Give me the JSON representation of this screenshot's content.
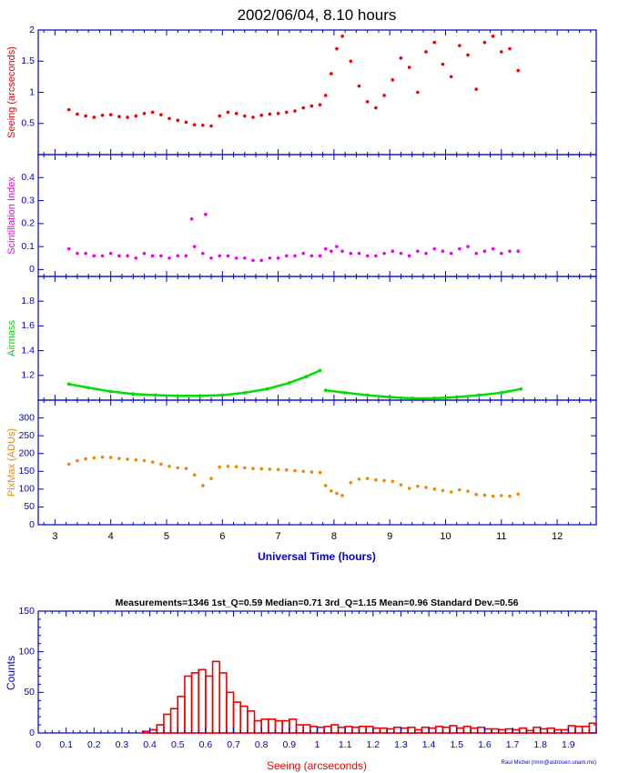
{
  "chart_data": [
    {
      "type": "scatter",
      "title": "2002/06/04, 8.10 hours",
      "xlabel": "Universal Time (hours)",
      "xlim": [
        2.7,
        12.7
      ],
      "x_ticks": [
        "3",
        "4",
        "5",
        "6",
        "7",
        "8",
        "9",
        "10",
        "11",
        "12"
      ],
      "panels": [
        {
          "name": "seeing",
          "ylabel": "Seeing (arcseconds)",
          "ylim": [
            0,
            2
          ],
          "y_ticks": [
            "0.5",
            "1",
            "1.5",
            "2"
          ],
          "color": "#ee0000",
          "x": [
            3.25,
            3.4,
            3.55,
            3.7,
            3.85,
            4.0,
            4.15,
            4.3,
            4.45,
            4.6,
            4.75,
            4.9,
            5.05,
            5.2,
            5.35,
            5.5,
            5.65,
            5.8,
            5.95,
            6.1,
            6.25,
            6.4,
            6.55,
            6.7,
            6.85,
            7.0,
            7.15,
            7.3,
            7.45,
            7.6,
            7.75,
            7.85,
            7.95,
            8.05,
            8.15,
            8.3,
            8.45,
            8.6,
            8.75,
            8.9,
            9.05,
            9.2,
            9.35,
            9.5,
            9.65,
            9.8,
            9.95,
            10.1,
            10.25,
            10.4,
            10.55,
            10.7,
            10.85,
            11.0,
            11.15,
            11.3
          ],
          "y": [
            0.72,
            0.65,
            0.62,
            0.6,
            0.63,
            0.64,
            0.61,
            0.6,
            0.62,
            0.66,
            0.68,
            0.64,
            0.58,
            0.55,
            0.52,
            0.48,
            0.47,
            0.46,
            0.62,
            0.68,
            0.66,
            0.62,
            0.6,
            0.63,
            0.65,
            0.66,
            0.68,
            0.7,
            0.75,
            0.78,
            0.8,
            0.95,
            1.3,
            1.7,
            1.9,
            1.5,
            1.1,
            0.85,
            0.75,
            0.95,
            1.2,
            1.55,
            1.4,
            1.0,
            1.65,
            1.8,
            1.45,
            1.25,
            1.75,
            1.6,
            1.05,
            1.8,
            1.9,
            1.65,
            1.7,
            1.35
          ]
        },
        {
          "name": "scintillation",
          "ylabel": "Scintillation Index",
          "ylim": [
            -0.03,
            0.5
          ],
          "y_ticks": [
            "0",
            "0.1",
            "0.2",
            "0.3",
            "0.4"
          ],
          "color": "#ee00ee",
          "x": [
            3.25,
            3.4,
            3.55,
            3.7,
            3.85,
            4.0,
            4.15,
            4.3,
            4.45,
            4.6,
            4.75,
            4.9,
            5.05,
            5.2,
            5.35,
            5.5,
            5.65,
            5.8,
            5.95,
            6.1,
            6.25,
            6.4,
            6.55,
            6.7,
            6.85,
            7.0,
            7.15,
            7.3,
            7.45,
            7.6,
            7.75,
            7.85,
            7.95,
            8.05,
            8.15,
            8.3,
            8.45,
            8.6,
            8.75,
            8.9,
            9.05,
            9.2,
            9.35,
            9.5,
            9.65,
            9.8,
            9.95,
            10.1,
            10.25,
            10.4,
            10.55,
            10.7,
            10.85,
            11.0,
            11.15,
            11.3
          ],
          "y": [
            0.09,
            0.07,
            0.07,
            0.06,
            0.06,
            0.07,
            0.06,
            0.06,
            0.05,
            0.07,
            0.06,
            0.06,
            0.05,
            0.06,
            0.06,
            0.1,
            0.07,
            0.05,
            0.06,
            0.06,
            0.05,
            0.05,
            0.04,
            0.04,
            0.05,
            0.05,
            0.06,
            0.06,
            0.07,
            0.06,
            0.06,
            0.09,
            0.08,
            0.1,
            0.08,
            0.07,
            0.07,
            0.06,
            0.06,
            0.07,
            0.08,
            0.07,
            0.06,
            0.08,
            0.07,
            0.09,
            0.08,
            0.07,
            0.09,
            0.1,
            0.07,
            0.08,
            0.09,
            0.07,
            0.08,
            0.08
          ],
          "outliers": {
            "x": [
              5.45,
              5.7
            ],
            "y": [
              0.22,
              0.24
            ]
          }
        },
        {
          "name": "airmass",
          "ylabel": "Airmass",
          "ylim": [
            1.0,
            2.0
          ],
          "y_ticks": [
            "1.2",
            "1.4",
            "1.6",
            "1.8"
          ],
          "color": "#00dd00",
          "x": [
            3.25,
            3.6,
            4.0,
            4.4,
            4.8,
            5.2,
            5.6,
            6.0,
            6.4,
            6.8,
            7.2,
            7.5,
            7.75,
            7.85,
            8.2,
            8.6,
            9.0,
            9.4,
            9.8,
            10.2,
            10.6,
            11.0,
            11.35
          ],
          "y": [
            1.13,
            1.1,
            1.07,
            1.05,
            1.04,
            1.035,
            1.035,
            1.04,
            1.06,
            1.09,
            1.14,
            1.19,
            1.24,
            1.08,
            1.06,
            1.04,
            1.025,
            1.015,
            1.015,
            1.025,
            1.04,
            1.06,
            1.09
          ]
        },
        {
          "name": "pixmax",
          "ylabel": "PixMax (ADUs)",
          "ylim": [
            0,
            350
          ],
          "y_ticks": [
            "0",
            "50",
            "100",
            "150",
            "200",
            "250",
            "300"
          ],
          "color": "#ee8800",
          "x": [
            3.25,
            3.4,
            3.55,
            3.7,
            3.85,
            4.0,
            4.15,
            4.3,
            4.45,
            4.6,
            4.75,
            4.9,
            5.05,
            5.2,
            5.35,
            5.5,
            5.65,
            5.8,
            5.95,
            6.1,
            6.25,
            6.4,
            6.55,
            6.7,
            6.85,
            7.0,
            7.15,
            7.3,
            7.45,
            7.6,
            7.75,
            7.85,
            7.95,
            8.05,
            8.15,
            8.3,
            8.45,
            8.6,
            8.75,
            8.9,
            9.05,
            9.2,
            9.35,
            9.5,
            9.65,
            9.8,
            9.95,
            10.1,
            10.25,
            10.4,
            10.55,
            10.7,
            10.85,
            11.0,
            11.15,
            11.3
          ],
          "y": [
            170,
            180,
            185,
            188,
            190,
            189,
            186,
            184,
            182,
            180,
            176,
            170,
            164,
            160,
            158,
            140,
            110,
            130,
            162,
            164,
            163,
            160,
            158,
            157,
            156,
            155,
            154,
            152,
            150,
            148,
            147,
            110,
            95,
            88,
            82,
            118,
            128,
            130,
            126,
            124,
            122,
            112,
            102,
            108,
            105,
            100,
            96,
            92,
            98,
            94,
            85,
            83,
            80,
            82,
            80,
            86
          ]
        }
      ]
    },
    {
      "type": "bar",
      "title": "Measurements=1346   1st_Q=0.59   Median=0.71   3rd_Q=1.15   Mean=0.96   Standard Dev.=0.56",
      "xlabel": "Seeing (arcseconds)",
      "ylabel": "Counts",
      "xlim": [
        0,
        2
      ],
      "ylim": [
        0,
        150
      ],
      "bin_width": 0.025,
      "x_ticks": [
        "0",
        "0.1",
        "0.2",
        "0.3",
        "0.4",
        "0.5",
        "0.6",
        "0.7",
        "0.8",
        "0.9",
        "1",
        "1.1",
        "1.2",
        "1.3",
        "1.4",
        "1.5",
        "1.6",
        "1.7",
        "1.8",
        "1.9"
      ],
      "y_ticks": [
        "0",
        "50",
        "100",
        "150"
      ],
      "color": "#ee0000",
      "values": [
        0,
        0,
        0,
        0,
        0,
        0,
        0,
        0,
        0,
        0,
        0,
        0,
        0,
        0,
        0,
        2,
        4,
        10,
        23,
        30,
        45,
        70,
        74,
        78,
        70,
        88,
        74,
        50,
        38,
        33,
        27,
        15,
        17,
        17,
        15,
        15,
        17,
        10,
        10,
        8,
        7,
        8,
        10,
        7,
        8,
        7,
        8,
        8,
        6,
        6,
        5,
        7,
        6,
        7,
        4,
        7,
        6,
        8,
        7,
        9,
        6,
        8,
        6,
        7,
        5,
        5,
        4,
        5,
        4,
        6,
        3,
        7,
        5,
        6,
        4,
        4,
        9,
        8,
        8,
        12
      ],
      "credit": "Raul Michel (rmm@astrosen.unam.mx)"
    }
  ]
}
